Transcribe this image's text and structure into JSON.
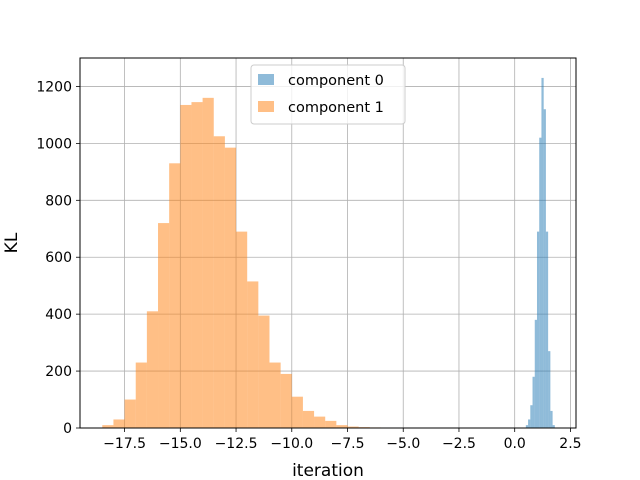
{
  "chart_data": {
    "type": "bar",
    "xlabel": "iteration",
    "ylabel": "KL",
    "xlim": [
      -19.5,
      2.75
    ],
    "ylim": [
      0,
      1300
    ],
    "grid": true,
    "legend_position": "top-center",
    "x_ticks": [
      {
        "value": -17.5,
        "label": "−17.5"
      },
      {
        "value": -15.0,
        "label": "−15.0"
      },
      {
        "value": -12.5,
        "label": "−12.5"
      },
      {
        "value": -10.0,
        "label": "−10.0"
      },
      {
        "value": -7.5,
        "label": "−7.5"
      },
      {
        "value": -5.0,
        "label": "−5.0"
      },
      {
        "value": -2.5,
        "label": "−2.5"
      },
      {
        "value": 0.0,
        "label": "0.0"
      },
      {
        "value": 2.5,
        "label": "2.5"
      }
    ],
    "y_ticks": [
      {
        "value": 0,
        "label": "0"
      },
      {
        "value": 200,
        "label": "200"
      },
      {
        "value": 400,
        "label": "400"
      },
      {
        "value": 600,
        "label": "600"
      },
      {
        "value": 800,
        "label": "800"
      },
      {
        "value": 1000,
        "label": "1000"
      },
      {
        "value": 1200,
        "label": "1200"
      }
    ],
    "series": [
      {
        "name": "component 0",
        "color": "#1f77b4",
        "opacity": 0.5,
        "bin_edges": [
          0.5,
          0.6,
          0.7,
          0.8,
          0.9,
          1.0,
          1.1,
          1.2,
          1.3,
          1.4,
          1.5,
          1.6,
          1.7,
          1.8
        ],
        "counts": [
          10,
          30,
          80,
          180,
          380,
          690,
          1020,
          1230,
          1120,
          690,
          270,
          60,
          10
        ]
      },
      {
        "name": "component 1",
        "color": "#ff7f0e",
        "opacity": 0.5,
        "bin_edges": [
          -18.5,
          -18.0,
          -17.5,
          -17.0,
          -16.5,
          -16.0,
          -15.5,
          -15.0,
          -14.5,
          -14.0,
          -13.5,
          -13.0,
          -12.5,
          -12.0,
          -11.5,
          -11.0,
          -10.5,
          -10.0,
          -9.5,
          -9.0,
          -8.5,
          -8.0,
          -7.5,
          -7.0,
          -6.5,
          -6.0
        ],
        "counts": [
          10,
          30,
          100,
          230,
          410,
          720,
          930,
          1135,
          1145,
          1160,
          1025,
          985,
          690,
          515,
          395,
          230,
          190,
          110,
          60,
          40,
          25,
          10,
          5,
          3,
          2
        ]
      }
    ]
  }
}
